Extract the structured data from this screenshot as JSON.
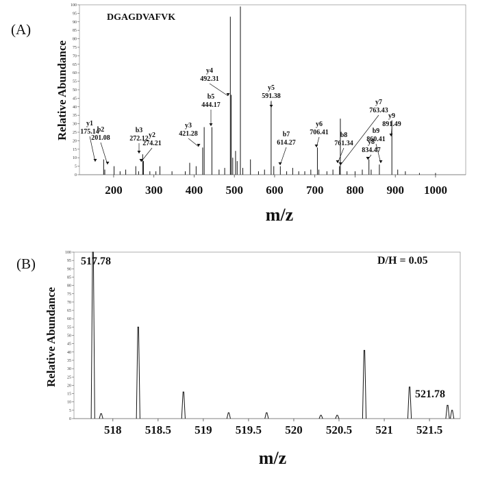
{
  "chart_data": [
    {
      "type": "line",
      "panel_label": "(A)",
      "annotation": "DGAGDVAFVK",
      "xlabel": "m/z",
      "ylabel": "Relative Abundance",
      "xlim": [
        115,
        1075
      ],
      "ylim": [
        0,
        100
      ],
      "x_ticks": [
        "200",
        "300",
        "400",
        "500",
        "600",
        "700",
        "800",
        "900",
        "1000"
      ],
      "y_ticks": [
        "0",
        "5",
        "10",
        "15",
        "20",
        "25",
        "30",
        "35",
        "40",
        "45",
        "50",
        "55",
        "60",
        "65",
        "70",
        "75",
        "80",
        "85",
        "90",
        "95",
        "100"
      ],
      "grid": false,
      "peaks": [
        {
          "x": 175.14,
          "y": 9
        },
        {
          "x": 178.0,
          "y": 3
        },
        {
          "x": 201.08,
          "y": 5
        },
        {
          "x": 216.0,
          "y": 2
        },
        {
          "x": 230.0,
          "y": 3
        },
        {
          "x": 255.0,
          "y": 5
        },
        {
          "x": 262.0,
          "y": 2
        },
        {
          "x": 272.12,
          "y": 12
        },
        {
          "x": 274.21,
          "y": 8
        },
        {
          "x": 290.0,
          "y": 2
        },
        {
          "x": 305.0,
          "y": 2
        },
        {
          "x": 315.0,
          "y": 5
        },
        {
          "x": 345.0,
          "y": 2
        },
        {
          "x": 378.0,
          "y": 2
        },
        {
          "x": 389.0,
          "y": 7
        },
        {
          "x": 405.0,
          "y": 5
        },
        {
          "x": 421.28,
          "y": 16
        },
        {
          "x": 425.0,
          "y": 28
        },
        {
          "x": 444.17,
          "y": 28
        },
        {
          "x": 462.0,
          "y": 3
        },
        {
          "x": 476.0,
          "y": 4
        },
        {
          "x": 490.0,
          "y": 93
        },
        {
          "x": 492.31,
          "y": 47
        },
        {
          "x": 496.0,
          "y": 10
        },
        {
          "x": 503.0,
          "y": 14
        },
        {
          "x": 507.0,
          "y": 8
        },
        {
          "x": 515.0,
          "y": 99
        },
        {
          "x": 521.0,
          "y": 4
        },
        {
          "x": 540.0,
          "y": 9
        },
        {
          "x": 560.0,
          "y": 2
        },
        {
          "x": 575.0,
          "y": 3
        },
        {
          "x": 591.38,
          "y": 43
        },
        {
          "x": 598.0,
          "y": 5
        },
        {
          "x": 614.27,
          "y": 5
        },
        {
          "x": 630.0,
          "y": 2
        },
        {
          "x": 645.0,
          "y": 4
        },
        {
          "x": 660.0,
          "y": 2
        },
        {
          "x": 675.0,
          "y": 2
        },
        {
          "x": 690.0,
          "y": 3
        },
        {
          "x": 706.41,
          "y": 16
        },
        {
          "x": 710.0,
          "y": 3
        },
        {
          "x": 730.0,
          "y": 2
        },
        {
          "x": 745.0,
          "y": 3
        },
        {
          "x": 761.34,
          "y": 5
        },
        {
          "x": 763.43,
          "y": 33
        },
        {
          "x": 780.0,
          "y": 2
        },
        {
          "x": 800.0,
          "y": 2
        },
        {
          "x": 818.0,
          "y": 3
        },
        {
          "x": 834.47,
          "y": 9
        },
        {
          "x": 840.0,
          "y": 3
        },
        {
          "x": 860.41,
          "y": 6
        },
        {
          "x": 891.49,
          "y": 32
        },
        {
          "x": 906.0,
          "y": 3
        },
        {
          "x": 925.0,
          "y": 2
        },
        {
          "x": 960.0,
          "y": 1
        },
        {
          "x": 1000.0,
          "y": 1
        }
      ],
      "labels": [
        {
          "ion": "y1",
          "mz": "175.14",
          "x": 175.14
        },
        {
          "ion": "b2",
          "mz": "201.08",
          "x": 201.08
        },
        {
          "ion": "b3",
          "mz": "272.12",
          "x": 272.12
        },
        {
          "ion": "y2",
          "mz": "274.21",
          "x": 274.21
        },
        {
          "ion": "y3",
          "mz": "421.28",
          "x": 421.28
        },
        {
          "ion": "b5",
          "mz": "444.17",
          "x": 444.17
        },
        {
          "ion": "y4",
          "mz": "492.31",
          "x": 492.31
        },
        {
          "ion": "y5",
          "mz": "591.38",
          "x": 591.38
        },
        {
          "ion": "b7",
          "mz": "614.27",
          "x": 614.27
        },
        {
          "ion": "y6",
          "mz": "706.41",
          "x": 706.41
        },
        {
          "ion": "y7",
          "mz": "763.43",
          "x": 763.43
        },
        {
          "ion": "b8",
          "mz": "761.34",
          "x": 761.34
        },
        {
          "ion": "y8",
          "mz": "834.47",
          "x": 834.47
        },
        {
          "ion": "b9",
          "mz": "860.41",
          "x": 860.41
        },
        {
          "ion": "y9",
          "mz": "891.49",
          "x": 891.49
        }
      ]
    },
    {
      "type": "line",
      "panel_label": "(B)",
      "annotation": "D/H = 0.05",
      "xlabel": "m/z",
      "ylabel": "Relative Abundance",
      "xlim": [
        517.57,
        521.84
      ],
      "ylim": [
        0,
        100
      ],
      "x_ticks": [
        "518",
        "518.5",
        "519",
        "519.5",
        "520",
        "520.5",
        "521",
        "521.5"
      ],
      "y_ticks": [
        "0",
        "5",
        "10",
        "15",
        "20",
        "25",
        "30",
        "35",
        "40",
        "45",
        "50",
        "55",
        "60",
        "65",
        "70",
        "75",
        "80",
        "85",
        "90",
        "95",
        "100"
      ],
      "grid": false,
      "peaks": [
        {
          "x": 517.78,
          "y": 100
        },
        {
          "x": 517.87,
          "y": 3
        },
        {
          "x": 518.28,
          "y": 55
        },
        {
          "x": 518.78,
          "y": 16
        },
        {
          "x": 519.28,
          "y": 3.5
        },
        {
          "x": 519.7,
          "y": 3.5
        },
        {
          "x": 520.3,
          "y": 2
        },
        {
          "x": 520.48,
          "y": 2
        },
        {
          "x": 520.78,
          "y": 41
        },
        {
          "x": 521.28,
          "y": 19
        },
        {
          "x": 521.7,
          "y": 8
        },
        {
          "x": 521.75,
          "y": 5
        }
      ],
      "labels": [
        {
          "text": "517.78",
          "x": 517.78
        },
        {
          "text": "521.78",
          "x": 521.78
        }
      ]
    }
  ]
}
